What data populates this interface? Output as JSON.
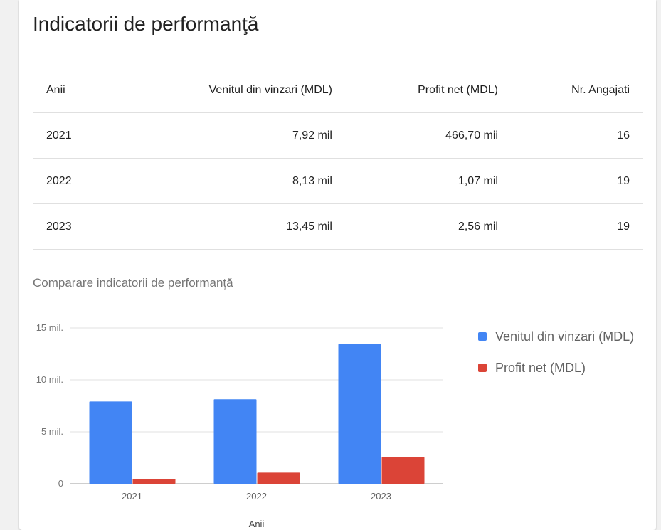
{
  "page": {
    "title": "Indicatorii de performanţă"
  },
  "table": {
    "headers": [
      "Anii",
      "Venitul din vinzari (MDL)",
      "Profit net (MDL)",
      "Nr. Angajati"
    ],
    "rows": [
      [
        "2021",
        "7,92 mil",
        "466,70 mii",
        "16"
      ],
      [
        "2022",
        "8,13 mil",
        "1,07 mil",
        "19"
      ],
      [
        "2023",
        "13,45 mil",
        "2,56 mil",
        "19"
      ]
    ]
  },
  "chart_title": "Comparare indicatorii de performanţă",
  "chart_data": {
    "type": "bar",
    "title": "Comparare indicatorii de performanţă",
    "xlabel": "Anii",
    "ylabel": "",
    "categories": [
      "2021",
      "2022",
      "2023"
    ],
    "series": [
      {
        "name": "Venitul din vinzari (MDL)",
        "color": "#4285f4",
        "values": [
          7920000,
          8130000,
          13450000
        ]
      },
      {
        "name": "Profit net (MDL)",
        "color": "#db4437",
        "values": [
          466700,
          1070000,
          2560000
        ]
      }
    ],
    "ylim": [
      0,
      15000000
    ],
    "yticks": [
      {
        "value": 0,
        "label": "0"
      },
      {
        "value": 5000000,
        "label": "5 mil."
      },
      {
        "value": 10000000,
        "label": "10 mil."
      },
      {
        "value": 15000000,
        "label": "15 mil."
      }
    ],
    "grid": true,
    "legend": "right"
  }
}
